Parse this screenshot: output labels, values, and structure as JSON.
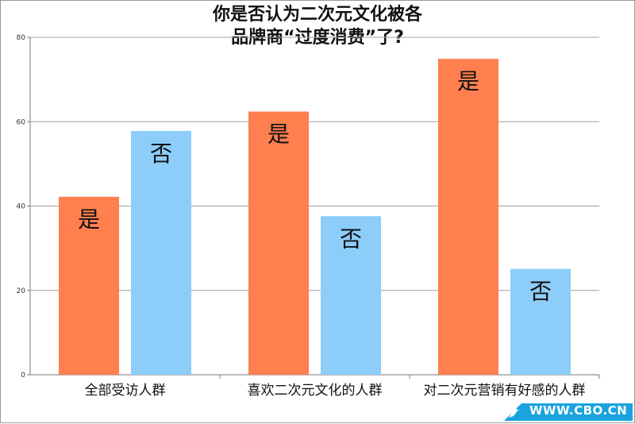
{
  "chart_data": {
    "type": "bar",
    "title_lines": [
      "你是否认为二次元文化被各",
      "品牌商“过度消费”了?"
    ],
    "categories": [
      "全部受访人群",
      "喜欢二次元文化的人群",
      "对二次元营销有好感的人群"
    ],
    "series": [
      {
        "name": "是",
        "color": "#ff7f4f",
        "values": [
          42.2,
          62.4,
          74.9
        ]
      },
      {
        "name": "否",
        "color": "#8ccdfa",
        "values": [
          57.8,
          37.6,
          25.1
        ]
      }
    ],
    "ylim": [
      0,
      80
    ],
    "yticks": [
      0,
      20,
      40,
      60,
      80
    ],
    "grid": true,
    "legend": "none",
    "xlabel": "",
    "ylabel": ""
  },
  "watermark": {
    "text": "WWW.CBO.CN"
  }
}
